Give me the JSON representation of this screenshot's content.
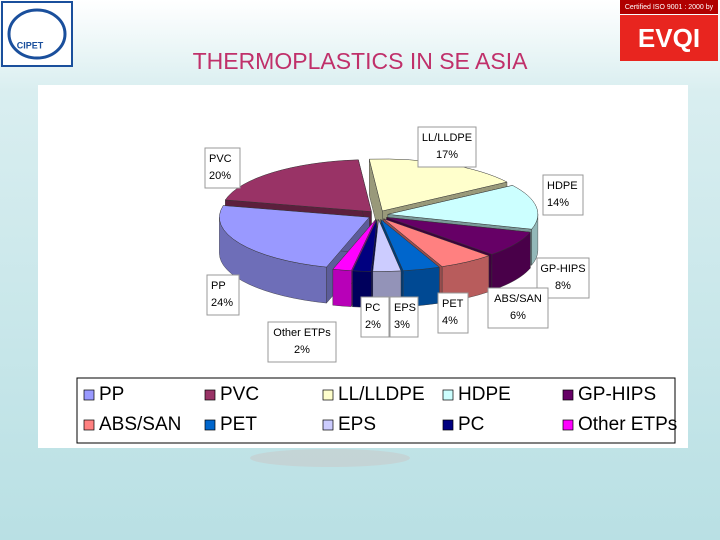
{
  "header": {
    "logo_text": "CIPET",
    "certification": "Certified ISO 9001 : 2000 by",
    "certifier": "EVQI"
  },
  "chart_data": {
    "type": "pie",
    "title": "THERMOPLASTICS IN SE ASIA",
    "categories": [
      "PP",
      "PVC",
      "LL/LLDPE",
      "HDPE",
      "GP-HIPS",
      "ABS/SAN",
      "PET",
      "EPS",
      "PC",
      "Other ETPs"
    ],
    "values": [
      24,
      20,
      17,
      14,
      8,
      6,
      4,
      3,
      2,
      2
    ],
    "value_labels": [
      "24%",
      "20%",
      "17%",
      "14%",
      "8%",
      "6%",
      "4%",
      "3%",
      "2%",
      "2%"
    ],
    "colors": [
      "#9999ff",
      "#993366",
      "#ffffcc",
      "#ccffff",
      "#660066",
      "#ff8080",
      "#0066cc",
      "#ccccff",
      "#000080",
      "#ff00ff"
    ],
    "legend": "bottom"
  }
}
